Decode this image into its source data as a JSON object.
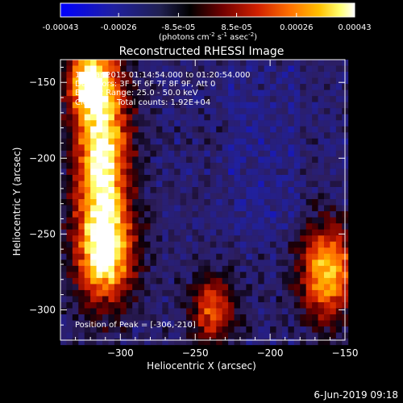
{
  "chart_data": {
    "type": "heatmap",
    "title": "Reconstructed RHESSI Image",
    "xlabel": "Heliocentric X (arcsec)",
    "ylabel": "Heliocentric Y (arcsec)",
    "xlim": [
      -340,
      -150
    ],
    "ylim": [
      -320,
      -135
    ],
    "x_ticks": [
      -300,
      -250,
      -200,
      -150
    ],
    "y_ticks": [
      -150,
      -200,
      -250,
      -300
    ],
    "colorbar": {
      "ticks": [
        "-0.00043",
        "-0.00026",
        "-8.5e-05",
        "8.5e-05",
        "0.00026",
        "0.00043"
      ],
      "tick_values": [
        -0.00043,
        -0.00026,
        -8.5e-05,
        8.5e-05,
        0.00026,
        0.00043
      ],
      "range": [
        -0.00043,
        0.00043
      ],
      "units_line": "(photons cm",
      "units_exp1": "-2",
      "units_s": " s",
      "units_exp2": "-1",
      "units_asec": " asec",
      "units_exp3": "-2",
      "units_close": ")",
      "colormap": [
        "#0000ff",
        "#1a1ab0",
        "#2c2c6a",
        "#000000",
        "#6a0000",
        "#c81e00",
        "#ff6a00",
        "#ffb400",
        "#ffff60",
        "#ffffff"
      ]
    },
    "annotations": {
      "time": "12-Mar-2015 01:14:54.000 to 01:20:54.000",
      "detectors": "Detectors: 3F 5F 6F 7F 8F 9F, Att 0",
      "energy": "Energy Range: 25.0 - 50.0 keV",
      "clean": "Clean",
      "total_counts": "Total counts: 1.92E+04",
      "peak": "Position of Peak = [-306,-210]"
    },
    "peak_position": [
      -306,
      -210
    ],
    "sources": [
      {
        "x": -312,
        "y": -200,
        "sx": 13,
        "sy": 48,
        "amp": 1.0
      },
      {
        "x": -322,
        "y": -150,
        "sx": 10,
        "sy": 15,
        "amp": 0.7
      },
      {
        "x": -310,
        "y": -265,
        "sx": 14,
        "sy": 22,
        "amp": 0.7
      },
      {
        "x": -162,
        "y": -275,
        "sx": 13,
        "sy": 22,
        "amp": 0.85
      },
      {
        "x": -238,
        "y": -300,
        "sx": 11,
        "sy": 16,
        "amp": 0.6
      }
    ]
  },
  "footer": {
    "date": "6-Jun-2019 09:18"
  }
}
